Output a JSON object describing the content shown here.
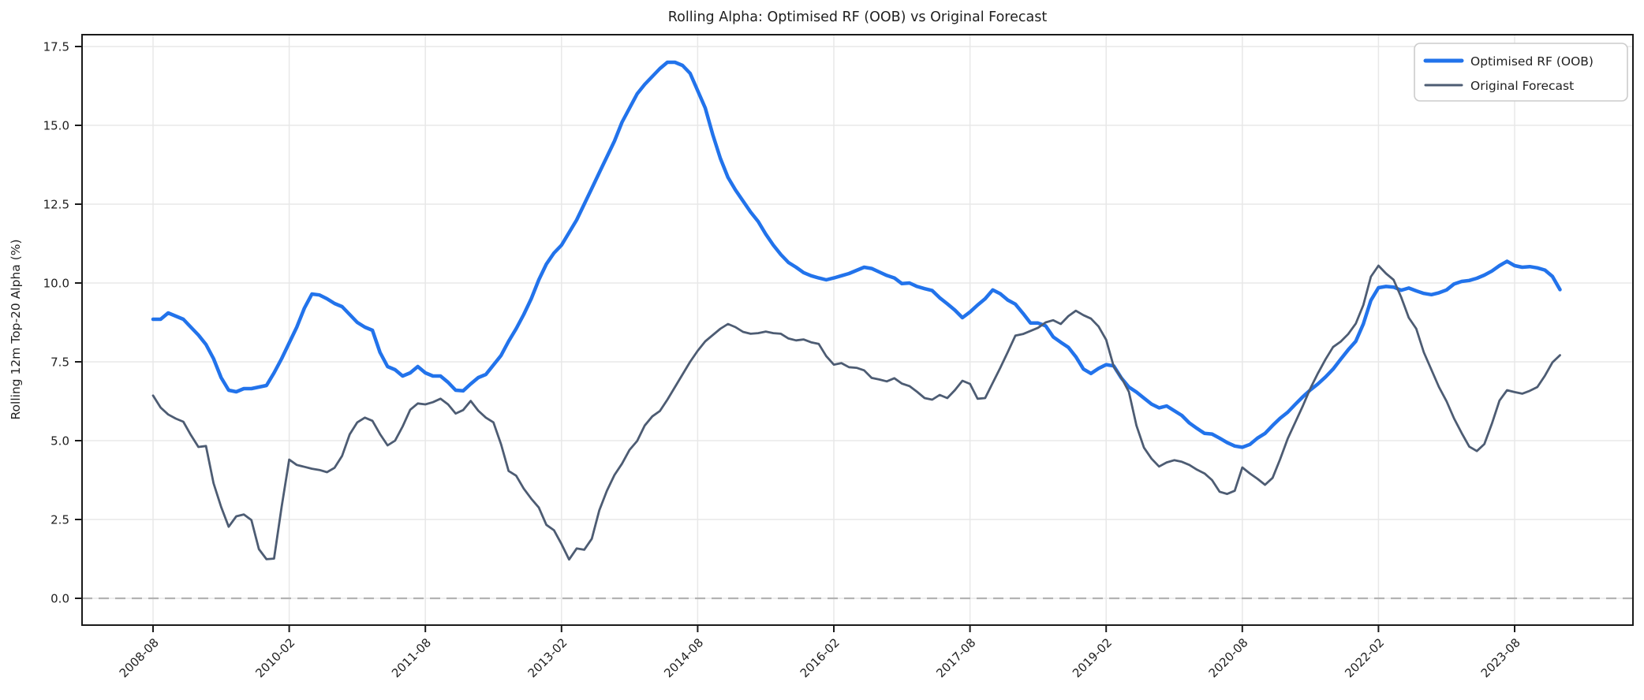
{
  "figure": {
    "title": "Rolling Alpha: Optimised RF (OOB) vs Original Forecast",
    "ylabel": "Rolling 12m Top-20 Alpha (%)"
  },
  "chart_data": {
    "type": "line",
    "title": "Rolling Alpha: Optimised RF (OOB) vs Original Forecast",
    "xlabel": "",
    "ylabel": "Rolling 12m Top-20 Alpha (%)",
    "x_start": "2008-08",
    "x_end": "2024-02",
    "x_frequency": "monthly",
    "x_tick_labels": [
      "2008-08",
      "2010-02",
      "2011-08",
      "2013-02",
      "2014-08",
      "2016-02",
      "2017-08",
      "2019-02",
      "2020-08",
      "2022-02",
      "2023-08"
    ],
    "x_tick_interval_months": 18,
    "y_tick_labels": [
      "0.0",
      "2.5",
      "5.0",
      "7.5",
      "10.0",
      "12.5",
      "15.0",
      "17.5"
    ],
    "ylim": [
      -0.9,
      17.9
    ],
    "grid": true,
    "zero_line": {
      "value": 0,
      "style": "dashed",
      "color": "#b3b3b3"
    },
    "legend": {
      "position": "upper right"
    },
    "series": [
      {
        "name": "Optimised RF (OOB)",
        "color": "#2273EB",
        "line_width": 4.5,
        "values": [
          8.85,
          8.85,
          9.05,
          8.95,
          8.85,
          8.6,
          8.35,
          8.05,
          7.6,
          7.0,
          6.6,
          6.55,
          6.65,
          6.65,
          6.7,
          6.75,
          7.15,
          7.6,
          8.1,
          8.6,
          9.2,
          9.65,
          9.62,
          9.5,
          9.35,
          9.25,
          9.0,
          8.75,
          8.6,
          8.5,
          7.8,
          7.35,
          7.25,
          7.05,
          7.15,
          7.35,
          7.15,
          7.05,
          7.05,
          6.85,
          6.6,
          6.58,
          6.8,
          7.0,
          7.1,
          7.4,
          7.7,
          8.15,
          8.55,
          9.0,
          9.5,
          10.1,
          10.6,
          10.95,
          11.2,
          11.6,
          12.0,
          12.5,
          13.0,
          13.5,
          14.0,
          14.5,
          15.1,
          15.55,
          16.0,
          16.3,
          16.55,
          16.8,
          17.0,
          17.0,
          16.9,
          16.65,
          16.1,
          15.55,
          14.7,
          13.95,
          13.35,
          12.95,
          12.6,
          12.25,
          11.95,
          11.55,
          11.2,
          10.9,
          10.65,
          10.5,
          10.33,
          10.23,
          10.16,
          10.1,
          10.16,
          10.23,
          10.3,
          10.4,
          10.5,
          10.46,
          10.35,
          10.24,
          10.16,
          9.98,
          10.0,
          9.89,
          9.82,
          9.76,
          9.53,
          9.34,
          9.14,
          8.9,
          9.08,
          9.3,
          9.5,
          9.78,
          9.66,
          9.46,
          9.33,
          9.04,
          8.73,
          8.73,
          8.64,
          8.29,
          8.12,
          7.96,
          7.66,
          7.27,
          7.13,
          7.29,
          7.41,
          7.37,
          6.99,
          6.7,
          6.54,
          6.35,
          6.16,
          6.04,
          6.1,
          5.95,
          5.8,
          5.56,
          5.39,
          5.23,
          5.21,
          5.08,
          4.94,
          4.83,
          4.79,
          4.88,
          5.08,
          5.23,
          5.48,
          5.71,
          5.9,
          6.15,
          6.39,
          6.61,
          6.8,
          7.02,
          7.27,
          7.58,
          7.88,
          8.15,
          8.7,
          9.45,
          9.85,
          9.89,
          9.87,
          9.77,
          9.84,
          9.75,
          9.67,
          9.63,
          9.69,
          9.78,
          9.97,
          10.05,
          10.08,
          10.15,
          10.25,
          10.38,
          10.55,
          10.69,
          10.55,
          10.5,
          10.52,
          10.48,
          10.41,
          10.21,
          9.79
        ]
      },
      {
        "name": "Original Forecast",
        "color": "#4D5C73",
        "line_width": 2.8,
        "values": [
          6.43,
          6.05,
          5.83,
          5.7,
          5.6,
          5.18,
          4.8,
          4.83,
          3.65,
          2.9,
          2.27,
          2.6,
          2.66,
          2.48,
          1.56,
          1.24,
          1.26,
          2.9,
          4.4,
          4.23,
          4.17,
          4.11,
          4.07,
          4.0,
          4.14,
          4.52,
          5.2,
          5.58,
          5.73,
          5.63,
          5.21,
          4.85,
          5.0,
          5.45,
          5.98,
          6.18,
          6.15,
          6.22,
          6.33,
          6.15,
          5.86,
          5.97,
          6.26,
          5.95,
          5.73,
          5.58,
          4.89,
          4.04,
          3.89,
          3.48,
          3.16,
          2.88,
          2.33,
          2.16,
          1.72,
          1.23,
          1.58,
          1.54,
          1.89,
          2.79,
          3.41,
          3.91,
          4.27,
          4.71,
          4.99,
          5.48,
          5.77,
          5.94,
          6.3,
          6.7,
          7.1,
          7.5,
          7.85,
          8.15,
          8.35,
          8.55,
          8.7,
          8.6,
          8.45,
          8.39,
          8.41,
          8.46,
          8.41,
          8.39,
          8.24,
          8.18,
          8.21,
          8.12,
          8.07,
          7.68,
          7.41,
          7.46,
          7.33,
          7.31,
          7.23,
          6.99,
          6.94,
          6.88,
          6.98,
          6.81,
          6.73,
          6.55,
          6.35,
          6.3,
          6.45,
          6.35,
          6.6,
          6.9,
          6.8,
          6.33,
          6.35,
          6.83,
          7.31,
          7.81,
          8.33,
          8.38,
          8.48,
          8.58,
          8.75,
          8.82,
          8.7,
          8.95,
          9.12,
          8.98,
          8.87,
          8.62,
          8.2,
          7.35,
          7.0,
          6.55,
          5.48,
          4.78,
          4.43,
          4.18,
          4.31,
          4.38,
          4.33,
          4.23,
          4.08,
          3.96,
          3.75,
          3.38,
          3.31,
          3.41,
          4.15,
          3.96,
          3.79,
          3.6,
          3.82,
          4.41,
          5.06,
          5.58,
          6.1,
          6.66,
          7.14,
          7.58,
          7.97,
          8.14,
          8.38,
          8.71,
          9.3,
          10.2,
          10.55,
          10.3,
          10.1,
          9.55,
          8.9,
          8.55,
          7.8,
          7.25,
          6.7,
          6.25,
          5.7,
          5.24,
          4.81,
          4.67,
          4.89,
          5.54,
          6.27,
          6.6,
          6.54,
          6.49,
          6.58,
          6.7,
          7.06,
          7.48,
          7.71
        ]
      }
    ]
  }
}
